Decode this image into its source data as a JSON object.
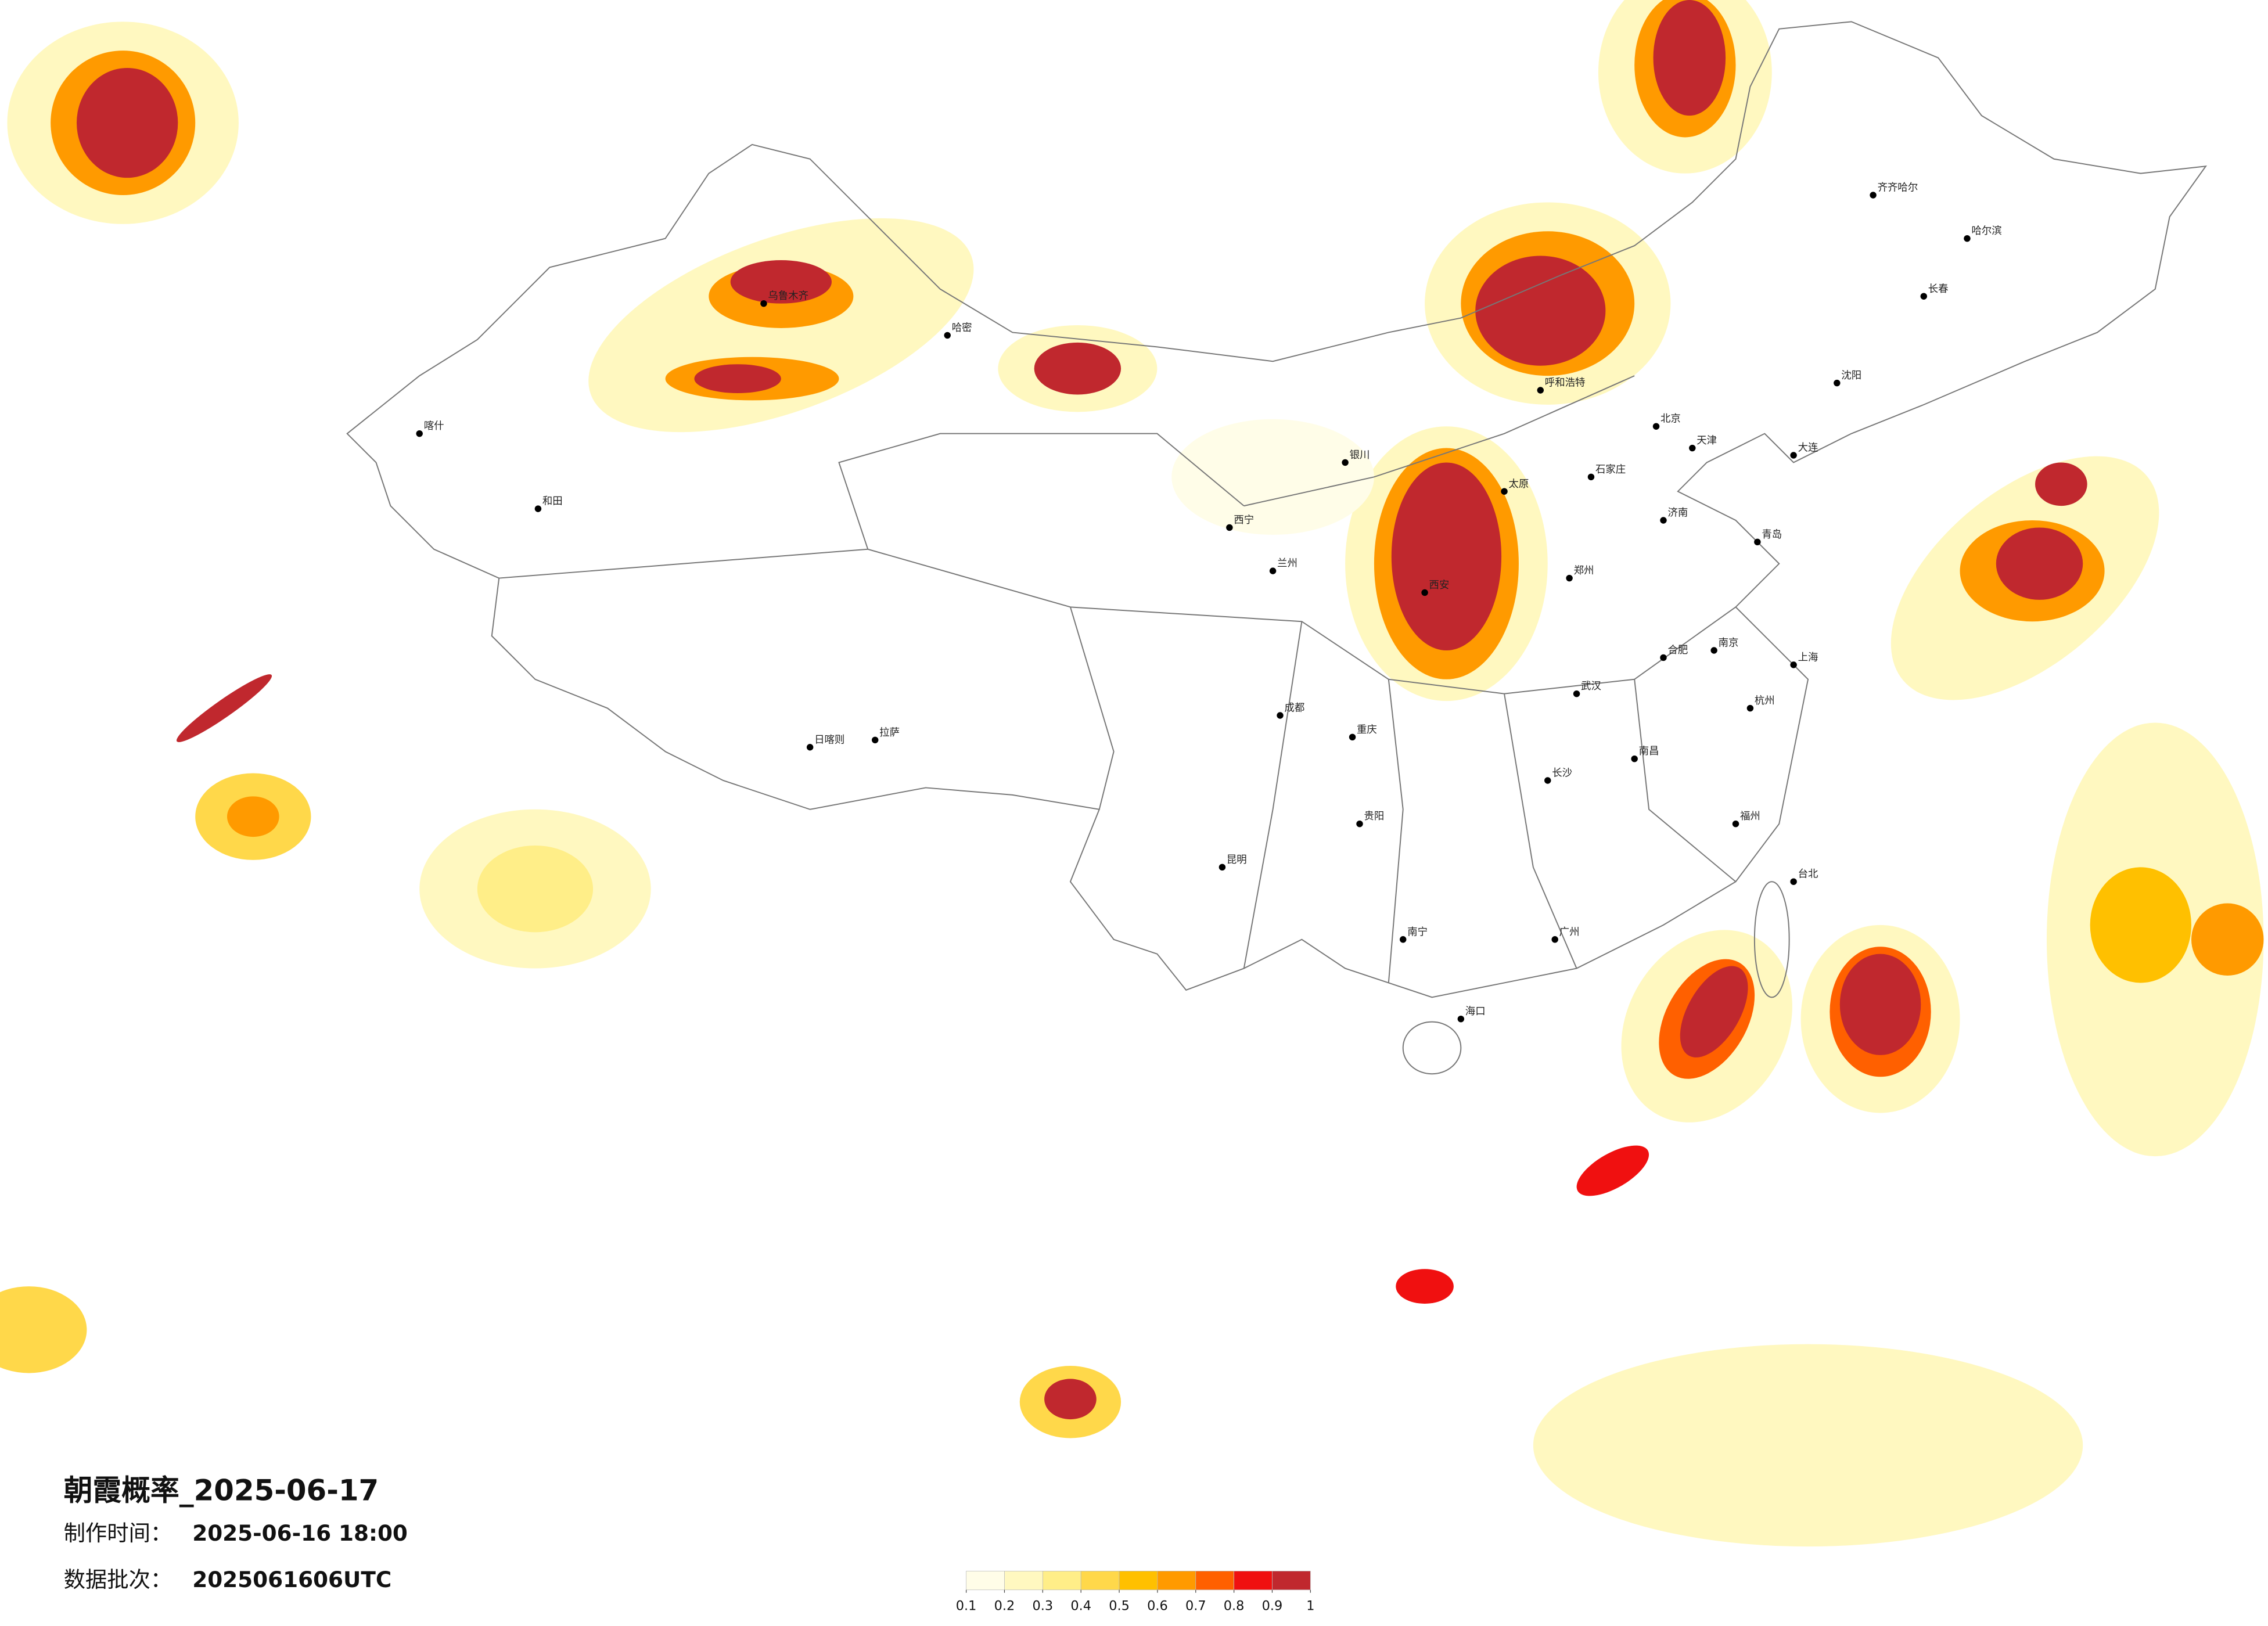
{
  "title": "朝霞概率_2025-06-17",
  "info": [
    {
      "label": "制作时间：",
      "value": "2025-06-16 18:00"
    },
    {
      "label": "数据批次：",
      "value": "2025061606UTC"
    }
  ],
  "colorbar": {
    "ticks": [
      0.1,
      0.2,
      0.3,
      0.4,
      0.5,
      0.6,
      0.7,
      0.8,
      0.9,
      1
    ],
    "colors": [
      "#fffde8",
      "#fff8c0",
      "#ffee88",
      "#ffd84a",
      "#ffc000",
      "#ff9a00",
      "#ff6000",
      "#f01010",
      "#c0282e"
    ]
  },
  "cities": [
    "乌鲁木齐",
    "哈密",
    "喀什",
    "和田",
    "拉萨",
    "日喀则",
    "西宁",
    "兰州",
    "银川",
    "呼和浩特",
    "北京",
    "天津",
    "石家庄",
    "太原",
    "西安",
    "郑州",
    "济南",
    "青岛",
    "南京",
    "上海",
    "杭州",
    "武汉",
    "长沙",
    "南昌",
    "福州",
    "台北",
    "广州",
    "南宁",
    "海口",
    "昆明",
    "成都",
    "重庆",
    "贵阳",
    "哈尔滨",
    "长春",
    "沈阳",
    "大连",
    "齐齐哈尔",
    "合肥"
  ]
}
